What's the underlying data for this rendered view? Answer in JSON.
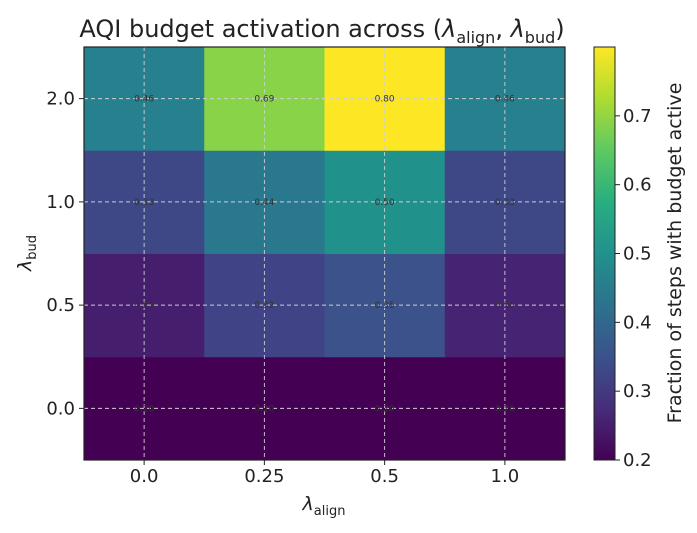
{
  "chart_data": {
    "type": "heatmap",
    "title": "AQI budget activation across (λalign, λbud)",
    "title_parts": {
      "prefix": "AQI budget activation across (",
      "sym": "λ",
      "sub1": "align",
      "sep": ", ",
      "sub2": "bud",
      "suffix": ")"
    },
    "xlabel": {
      "sym": "λ",
      "sub": "align"
    },
    "ylabel": {
      "sym": "λ",
      "sub": "bud"
    },
    "x_categories": [
      "0.0",
      "0.25",
      "0.5",
      "1.0"
    ],
    "y_categories": [
      "0.0",
      "0.5",
      "1.0",
      "2.0"
    ],
    "values": [
      [
        0.2,
        0.2,
        0.2,
        0.2
      ],
      [
        0.25,
        0.32,
        0.35,
        0.26
      ],
      [
        0.33,
        0.44,
        0.5,
        0.33
      ],
      [
        0.46,
        0.69,
        0.8,
        0.46
      ]
    ],
    "cell_labels": [
      [
        "0.20",
        "0.20",
        "0.20",
        "0.20"
      ],
      [
        "0.25",
        "0.32",
        "0.35",
        "0.26"
      ],
      [
        "0.33",
        "0.44",
        "0.50",
        "0.33"
      ],
      [
        "0.46",
        "0.69",
        "0.80",
        "0.46"
      ]
    ],
    "colorbar": {
      "label": "Fraction of steps with budget active",
      "vmin": 0.2,
      "vmax": 0.8,
      "ticks": [
        "0.2",
        "0.3",
        "0.4",
        "0.5",
        "0.6",
        "0.7"
      ],
      "tick_values": [
        0.2,
        0.3,
        0.4,
        0.5,
        0.6,
        0.7
      ]
    },
    "colormap": "viridis",
    "grid": true
  }
}
